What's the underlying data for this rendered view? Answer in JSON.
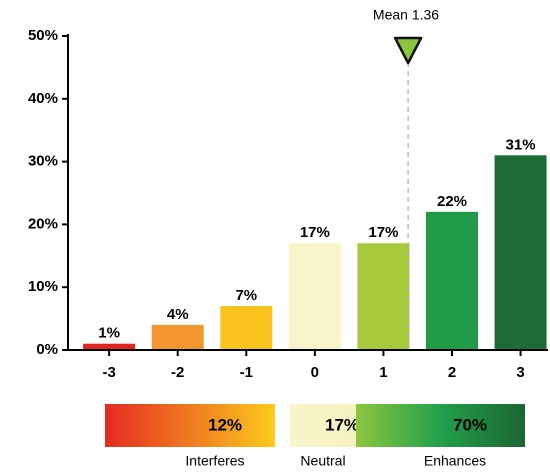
{
  "chart_data": {
    "type": "bar",
    "x": [
      -3,
      -2,
      -1,
      0,
      1,
      2,
      3
    ],
    "values": [
      1,
      4,
      7,
      17,
      17,
      22,
      31
    ],
    "value_labels": [
      "1%",
      "4%",
      "7%",
      "17%",
      "17%",
      "22%",
      "31%"
    ],
    "colors": [
      "#e02420",
      "#f0962c",
      "#f9c31c",
      "#f9f5cb",
      "#a8c93c",
      "#1f9a49",
      "#1d6b37"
    ],
    "xlim": [
      -3.6,
      3.4
    ],
    "ylim": [
      0,
      50
    ],
    "yticks": [
      {
        "value": 0,
        "label": "0%"
      },
      {
        "value": 10,
        "label": "10%"
      },
      {
        "value": 20,
        "label": "20%"
      },
      {
        "value": 30,
        "label": "30%"
      },
      {
        "value": 40,
        "label": "40%"
      },
      {
        "value": 50,
        "label": "50%"
      }
    ],
    "mean": {
      "label": "Mean 1.36",
      "value": 1.36
    },
    "summary": [
      {
        "name": "Interferes",
        "value": 12,
        "label": "12%"
      },
      {
        "name": "Neutral",
        "value": 17,
        "label": "17%"
      },
      {
        "name": "Enhances",
        "value": 70,
        "label": "70%"
      }
    ]
  }
}
